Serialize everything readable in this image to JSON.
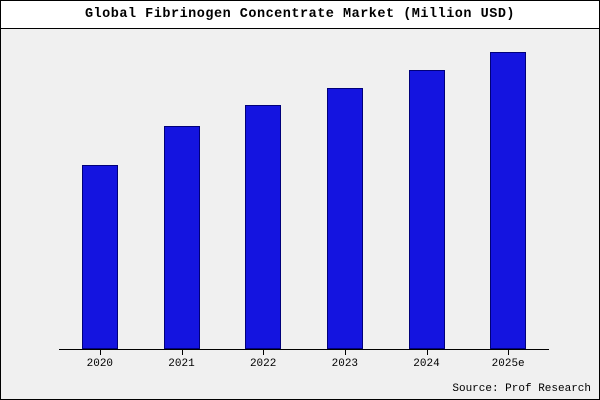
{
  "chart_data": {
    "type": "bar",
    "title": "Global Fibrinogen Concentrate Market (Million USD)",
    "categories": [
      "2020",
      "2021",
      "2022",
      "2023",
      "2024",
      "2025e"
    ],
    "values": [
      62,
      75,
      82,
      88,
      94,
      100
    ],
    "xlabel": "",
    "ylabel": "",
    "ylim": [
      0,
      100
    ],
    "grid": false,
    "legend": false,
    "source_label": "Source: Prof Research",
    "bar_fill_color": "#1414e0",
    "bar_border_color": "#00007a",
    "background_color": "#f0f0f0",
    "title_background_color": "#ffffff"
  }
}
